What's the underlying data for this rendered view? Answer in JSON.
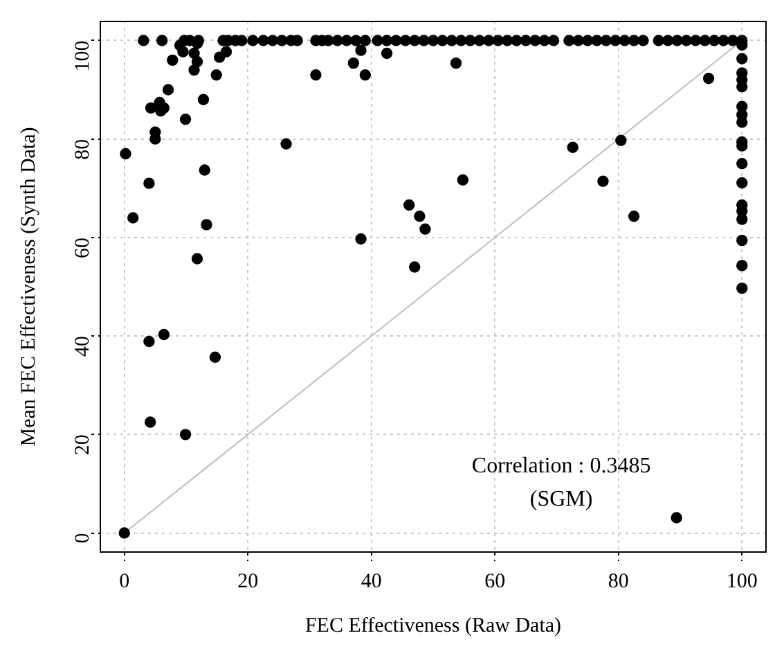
{
  "chart_data": {
    "type": "scatter",
    "xlabel": "FEC Effectiveness (Raw Data)",
    "ylabel": "Mean FEC Effectiveness (Synth Data)",
    "xlim": [
      -4,
      104
    ],
    "ylim": [
      -4,
      104
    ],
    "xticks": [
      0,
      20,
      40,
      60,
      80,
      100
    ],
    "yticks": [
      0,
      20,
      40,
      60,
      80,
      100
    ],
    "grid": true,
    "marker": "circle",
    "annotations": [
      "Correlation : 0.3485",
      "(SGM)"
    ],
    "series": [
      {
        "type": "line",
        "color": "#bebebe",
        "x": [
          0,
          100
        ],
        "values": [
          0,
          100
        ],
        "marker": "none"
      },
      {
        "color": "#000000",
        "x": [
          0,
          0.2,
          1.4,
          4,
          13,
          13.3,
          26.2,
          31,
          5,
          5,
          4.3,
          5.7,
          6.4,
          5.9,
          7.1,
          9.9,
          12.8,
          14.9,
          11.3,
          11.8,
          7.8,
          15.4,
          16.5,
          9,
          9.5,
          11.3,
          11.8,
          38.3,
          37.1,
          39,
          42.5,
          53.7,
          94.6,
          72.6,
          80.4,
          54.8,
          77.5,
          100,
          100,
          100,
          100,
          100,
          100,
          100,
          100,
          100,
          100,
          100,
          100,
          100,
          100,
          100,
          100,
          100,
          100,
          38.3,
          46.1,
          47.8,
          48.7,
          47,
          82.5,
          89.4,
          11.8,
          4,
          6.4,
          14.7,
          4.2,
          9.9,
          3.1,
          6.1,
          9.7,
          10.6,
          12,
          16,
          16.8,
          18,
          19,
          20.8,
          22.5,
          24,
          25.5,
          27,
          28,
          31,
          32,
          33,
          34.5,
          36,
          37.5,
          39,
          41,
          42.5,
          44,
          45.5,
          47,
          48.5,
          50,
          51.5,
          53,
          54.5,
          56,
          57.5,
          59,
          60.5,
          62,
          63.5,
          65,
          66.5,
          68,
          69.5,
          72,
          73.5,
          75,
          76.5,
          78,
          79.5,
          81,
          82.5,
          84,
          86.5,
          88,
          89.5,
          91,
          92.5,
          94,
          95.5,
          97,
          98.5,
          100
        ],
        "values": [
          0,
          77,
          64,
          71,
          73.7,
          62.6,
          79,
          93,
          81.4,
          80,
          86.3,
          87.4,
          86.3,
          85.7,
          90,
          84,
          88,
          93,
          94,
          95.7,
          96,
          96.6,
          97.7,
          99,
          97.7,
          97.4,
          99.4,
          98,
          95.4,
          93,
          97.4,
          95.4,
          92.3,
          78.3,
          79.7,
          71.7,
          71.4,
          99.1,
          96.3,
          93.4,
          92,
          90.6,
          86.6,
          84.9,
          83.4,
          79.4,
          78.6,
          75,
          71.1,
          66.6,
          65.4,
          63.7,
          59.4,
          54.3,
          49.7,
          59.7,
          66.6,
          64.3,
          61.7,
          54,
          64.3,
          3.1,
          55.7,
          38.9,
          40.3,
          35.7,
          22.5,
          20,
          100,
          100,
          100,
          100,
          100,
          100,
          100,
          100,
          100,
          100,
          100,
          100,
          100,
          100,
          100,
          100,
          100,
          100,
          100,
          100,
          100,
          100,
          100,
          100,
          100,
          100,
          100,
          100,
          100,
          100,
          100,
          100,
          100,
          100,
          100,
          100,
          100,
          100,
          100,
          100,
          100,
          100,
          100,
          100,
          100,
          100,
          100,
          100,
          100,
          100,
          100,
          100,
          100,
          100,
          100,
          100,
          100,
          100,
          100,
          100,
          100
        ]
      }
    ]
  }
}
